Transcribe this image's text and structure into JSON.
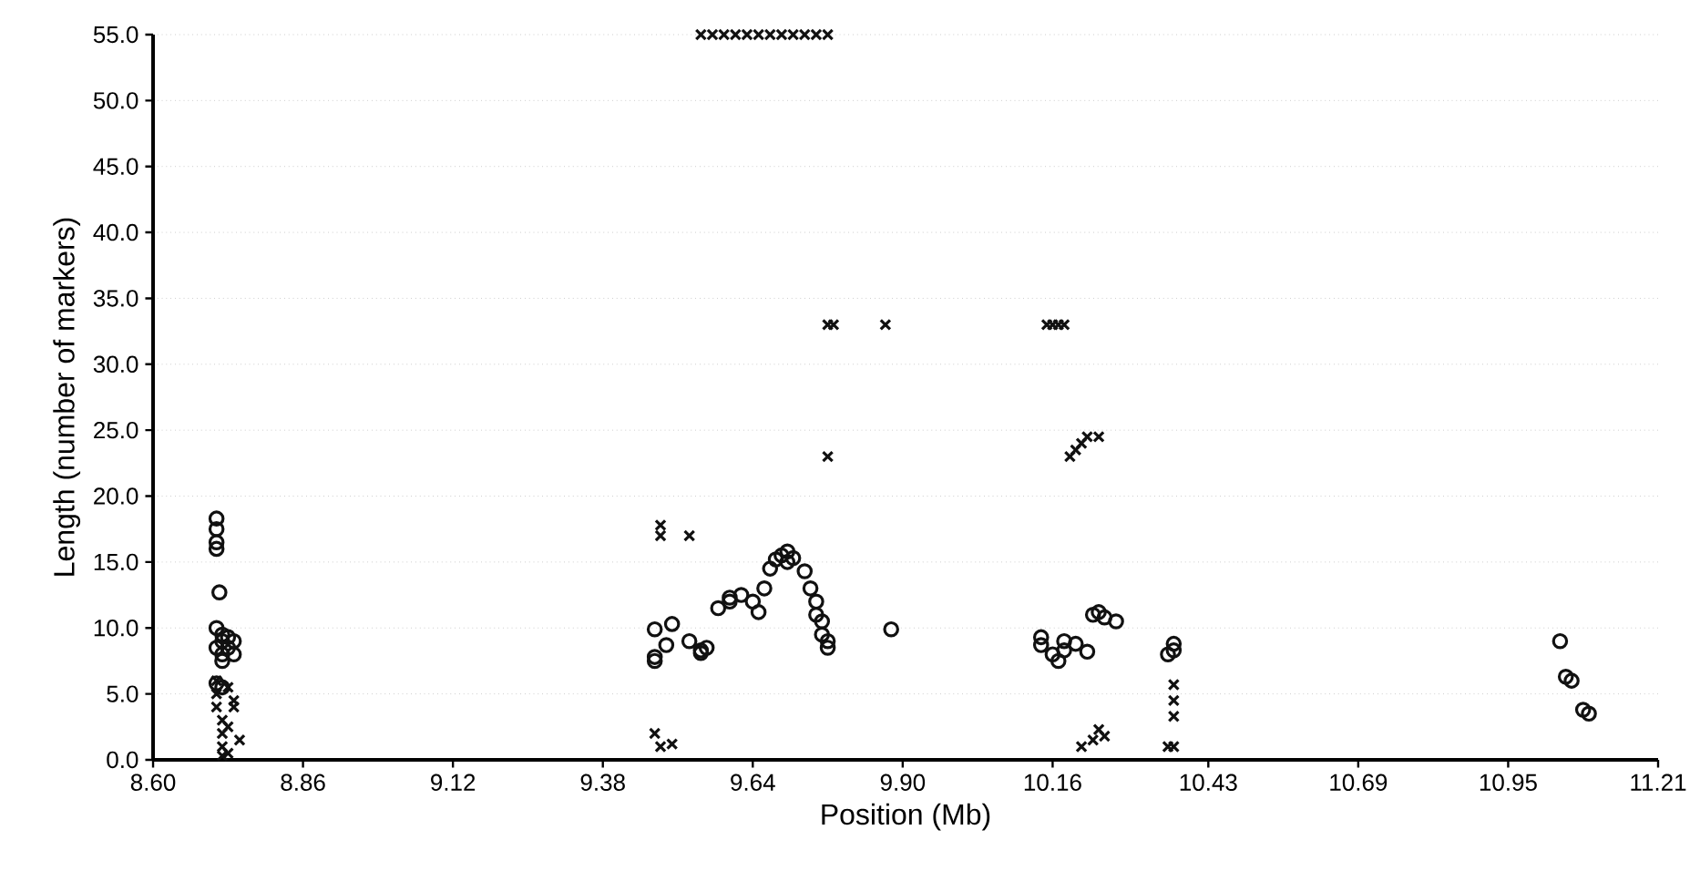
{
  "chart_data": {
    "type": "scatter",
    "xlabel": "Position (Mb)",
    "ylabel": "Length (number of markers)",
    "xlim": [
      8.6,
      11.21
    ],
    "ylim": [
      0,
      55
    ],
    "xticks": [
      {
        "value": 8.6,
        "label": "8.60"
      },
      {
        "value": 8.86,
        "label": "8.86"
      },
      {
        "value": 9.12,
        "label": "9.12"
      },
      {
        "value": 9.38,
        "label": "9.38"
      },
      {
        "value": 9.64,
        "label": "9.64"
      },
      {
        "value": 9.9,
        "label": "9.90"
      },
      {
        "value": 10.16,
        "label": "10.16"
      },
      {
        "value": 10.43,
        "label": "10.43"
      },
      {
        "value": 10.69,
        "label": "10.69"
      },
      {
        "value": 10.95,
        "label": "10.95"
      },
      {
        "value": 11.21,
        "label": "11.21"
      }
    ],
    "yticks": [
      {
        "value": 0,
        "label": "0.0"
      },
      {
        "value": 5,
        "label": "5.0"
      },
      {
        "value": 10,
        "label": "10.0"
      },
      {
        "value": 15,
        "label": "15.0"
      },
      {
        "value": 20,
        "label": "20.0"
      },
      {
        "value": 25,
        "label": "25.0"
      },
      {
        "value": 30,
        "label": "30.0"
      },
      {
        "value": 35,
        "label": "35.0"
      },
      {
        "value": 40,
        "label": "40.0"
      },
      {
        "value": 45,
        "label": "45.0"
      },
      {
        "value": 50,
        "label": "50.0"
      },
      {
        "value": 55,
        "label": "55.0"
      }
    ],
    "grid": "y",
    "series": [
      {
        "color": "#111111",
        "marker": "circle",
        "x": [
          8.71,
          8.71,
          8.71,
          8.71,
          8.715,
          8.71,
          8.72,
          8.72,
          8.73,
          8.74,
          8.71,
          8.72,
          8.73,
          8.72,
          8.74,
          8.71,
          8.72,
          9.47,
          9.47,
          9.47,
          9.49,
          9.5,
          9.53,
          9.55,
          9.55,
          9.56,
          9.58,
          9.6,
          9.6,
          9.62,
          9.64,
          9.65,
          9.66,
          9.67,
          9.68,
          9.69,
          9.7,
          9.7,
          9.71,
          9.73,
          9.74,
          9.75,
          9.75,
          9.76,
          9.76,
          9.77,
          9.77,
          9.88,
          10.14,
          10.14,
          10.16,
          10.17,
          10.18,
          10.18,
          10.2,
          10.22,
          10.23,
          10.24,
          10.25,
          10.27,
          10.36,
          10.37,
          10.37,
          11.04,
          11.05,
          11.06,
          11.08,
          11.09
        ],
        "values": [
          18.3,
          17.5,
          16.5,
          16.0,
          12.7,
          10.0,
          9.5,
          9.0,
          9.3,
          9.0,
          8.5,
          8.0,
          8.5,
          7.5,
          8.0,
          5.8,
          5.5,
          9.9,
          7.8,
          7.5,
          8.7,
          10.3,
          9.0,
          8.3,
          8.1,
          8.5,
          11.5,
          12.3,
          12.0,
          12.5,
          12.0,
          11.2,
          13.0,
          14.5,
          15.2,
          15.5,
          15.8,
          15.0,
          15.3,
          14.3,
          13.0,
          12.0,
          11.0,
          10.5,
          9.5,
          9.0,
          8.5,
          9.9,
          9.3,
          8.7,
          8.0,
          7.5,
          9.0,
          8.3,
          8.8,
          8.2,
          11.0,
          11.2,
          10.8,
          10.5,
          8.0,
          8.8,
          8.3,
          9.0,
          6.3,
          6.0,
          3.8,
          3.5
        ]
      },
      {
        "color": "#111111",
        "marker": "cross",
        "x": [
          8.71,
          8.71,
          8.71,
          8.72,
          8.72,
          8.72,
          8.73,
          8.73,
          8.74,
          8.74,
          8.75,
          8.72,
          8.73,
          9.55,
          9.57,
          9.59,
          9.61,
          9.63,
          9.65,
          9.67,
          9.69,
          9.71,
          9.73,
          9.75,
          9.77,
          9.77,
          9.78,
          9.87,
          9.77,
          9.48,
          9.48,
          9.53,
          9.47,
          9.48,
          9.5,
          10.15,
          10.16,
          10.17,
          10.18,
          10.19,
          10.2,
          10.21,
          10.22,
          10.24,
          10.21,
          10.23,
          10.24,
          10.25,
          10.36,
          10.37,
          10.37,
          10.37,
          10.37
        ],
        "values": [
          6.0,
          5.0,
          4.0,
          3.0,
          2.0,
          1.0,
          0.5,
          5.5,
          4.5,
          4.0,
          1.5,
          0.3,
          2.5,
          55,
          55,
          55,
          55,
          55,
          55,
          55,
          55,
          55,
          55,
          55,
          55,
          33,
          33,
          33,
          23,
          17.8,
          17.0,
          17.0,
          2.0,
          1.0,
          1.2,
          33,
          33,
          33,
          33,
          23,
          23.5,
          24,
          24.5,
          24.5,
          1.0,
          1.5,
          2.3,
          1.8,
          1.0,
          5.7,
          4.5,
          3.3,
          1.0
        ]
      }
    ]
  }
}
